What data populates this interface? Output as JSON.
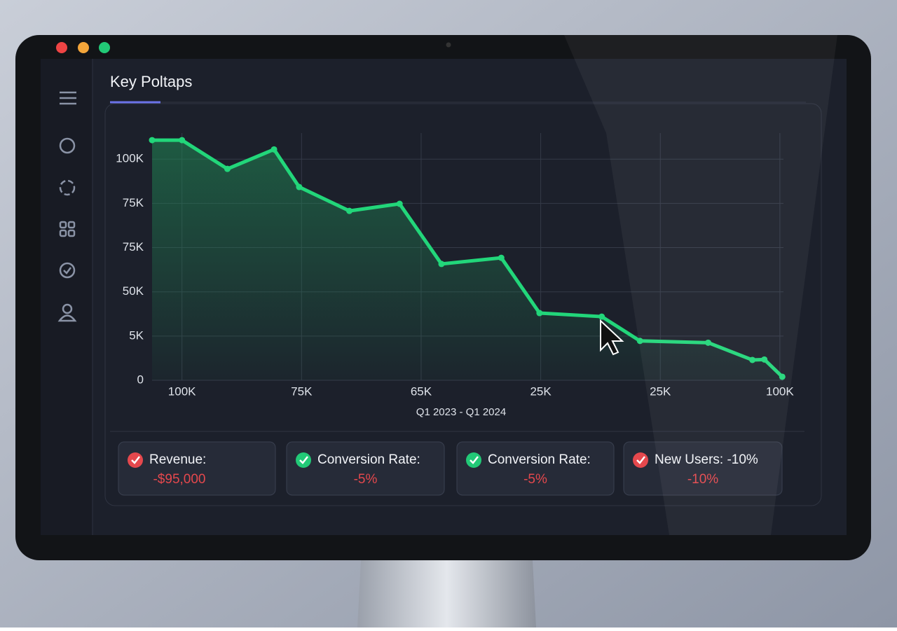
{
  "title": "Key Poltaps",
  "chart_data": {
    "type": "line",
    "color": "#22d67a",
    "grid": true,
    "x_label": "Q1 2023 - Q1 2024",
    "x": [
      -0.25,
      0,
      0.38,
      0.77,
      0.98,
      1.4,
      1.82,
      2.17,
      2.67,
      2.99,
      3.51,
      3.83,
      4.4,
      4.77,
      4.87,
      5.02
    ],
    "values": [
      5.43,
      5.43,
      4.78,
      5.22,
      4.37,
      3.83,
      3.99,
      2.63,
      2.77,
      1.52,
      1.44,
      0.89,
      0.85,
      0.46,
      0.47,
      0.08
    ],
    "xlim": [
      -0.25,
      5.03
    ],
    "ylim": [
      0,
      5.59
    ],
    "xticks": [
      {
        "value": 0,
        "label": "100K"
      },
      {
        "value": 1,
        "label": "75K"
      },
      {
        "value": 2,
        "label": "65K"
      },
      {
        "value": 3,
        "label": "25K"
      },
      {
        "value": 4,
        "label": "25K"
      },
      {
        "value": 5,
        "label": "100K"
      }
    ],
    "yticks": [
      0,
      {
        "value": 1,
        "label": "5K"
      },
      {
        "value": 2,
        "label": "50K"
      },
      {
        "value": 3,
        "label": "75K"
      },
      {
        "value": 4,
        "label": "75K"
      },
      {
        "value": 5,
        "label": "100K"
      }
    ]
  },
  "metrics": [
    {
      "label": "Revenue:",
      "value": "-$95,000",
      "icon_color": "#e5484d"
    },
    {
      "label": "Conversion Rate:",
      "value": "-5%",
      "icon_color": "#22c977"
    },
    {
      "label": "Conversion Rate:",
      "value": "-5%",
      "icon_color": "#22c977"
    },
    {
      "label": "New Users:  -10%",
      "value": "-10%",
      "icon_color": "#e5484d"
    }
  ]
}
